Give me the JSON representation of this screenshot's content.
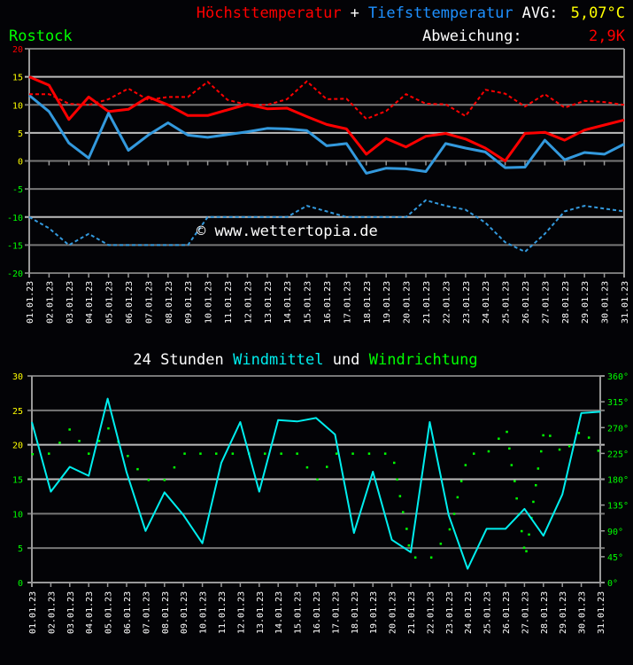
{
  "header": {
    "title_max": "Höchsttemperatur",
    "title_plus": "+",
    "title_min": "Tiefsttemperatur",
    "avg_label": "AVG:",
    "avg_value": "5,07°C",
    "location": "Rostock",
    "deviation_label": "Abweichung:",
    "deviation_value": "2,9K"
  },
  "watermark": "© www.wettertopia.de",
  "colors": {
    "background": "#030306",
    "max_temp": "#ff0000",
    "min_temp": "#3399dd",
    "wind_speed": "#00eeee",
    "wind_direction": "#00ff00",
    "avg": "#ffff00",
    "grid": "#9a9a9a"
  },
  "chart_data": [
    {
      "type": "line",
      "title": "Höchsttemperatur + Tiefsttemperatur",
      "categories": [
        "01.01.23",
        "02.01.23",
        "03.01.23",
        "04.01.23",
        "05.01.23",
        "06.01.23",
        "07.01.23",
        "08.01.23",
        "09.01.23",
        "10.01.23",
        "11.01.23",
        "12.01.23",
        "13.01.23",
        "14.01.23",
        "15.01.23",
        "16.01.23",
        "17.01.23",
        "18.01.23",
        "19.01.23",
        "20.01.23",
        "21.01.23",
        "22.01.23",
        "23.01.23",
        "24.01.23",
        "25.01.23",
        "26.01.23",
        "27.01.23",
        "28.01.23",
        "29.01.23",
        "30.01.23",
        "31.01.23"
      ],
      "ylim": [
        -20,
        20
      ],
      "yticks": [
        "20",
        "15",
        "10",
        "5",
        "0",
        "-5",
        "-10",
        "-15",
        "-20"
      ],
      "grid": true,
      "series": [
        {
          "style": "solid",
          "color": "#ff0000",
          "values": [
            15,
            13.5,
            7.4,
            11.4,
            8.8,
            9.2,
            11.4,
            10,
            8.1,
            8.1,
            9.1,
            10.1,
            9.3,
            9.4,
            7.9,
            6.5,
            5.7,
            1.2,
            4.0,
            2.5,
            4.4,
            4.9,
            3.9,
            2.3,
            0.0,
            4.9,
            5.1,
            3.7,
            5.5,
            6.4,
            7.3
          ]
        },
        {
          "style": "solid",
          "color": "#3399dd",
          "values": [
            11.7,
            8.8,
            3.2,
            0.5,
            8.5,
            1.9,
            4.6,
            6.8,
            4.6,
            4.2,
            4.7,
            5.2,
            5.8,
            5.7,
            5.4,
            2.7,
            3.1,
            -2.2,
            -1.3,
            -1.4,
            -1.9,
            3.1,
            2.3,
            1.6,
            -1.2,
            -1.1,
            3.7,
            0.2,
            1.5,
            1.2,
            3.0
          ]
        },
        {
          "style": "dashed",
          "color": "#ff0000",
          "values": [
            11.9,
            11.9,
            10.2,
            10.0,
            11.0,
            12.9,
            10.9,
            11.4,
            11.4,
            14.1,
            10.9,
            10.0,
            10.0,
            11.0,
            14.2,
            11.0,
            11.1,
            7.5,
            8.9,
            11.9,
            10.2,
            10.1,
            8.0,
            12.7,
            12.0,
            9.7,
            11.9,
            9.5,
            10.7,
            10.5,
            10.0
          ]
        },
        {
          "style": "dashed",
          "color": "#3399dd",
          "values": [
            -10,
            -12,
            -15,
            -13,
            -15,
            -15,
            -15,
            -15,
            -15,
            -10,
            -10,
            -10,
            -10,
            -10,
            -8,
            -9,
            -10,
            -10,
            -10,
            -10,
            -7,
            -8,
            -8.7,
            -11,
            -14.5,
            -16.2,
            -13,
            -9,
            -8,
            -8.5,
            -9
          ]
        }
      ]
    },
    {
      "type": "line",
      "title_parts": [
        "24 Stunden",
        "Windmittel",
        "und",
        "Windrichtung"
      ],
      "categories": [
        "01.01.23",
        "02.01.23",
        "03.01.23",
        "04.01.23",
        "05.01.23",
        "06.01.23",
        "07.01.23",
        "08.01.23",
        "09.01.23",
        "10.01.23",
        "11.01.23",
        "12.01.23",
        "13.01.23",
        "14.01.23",
        "15.01.23",
        "16.01.23",
        "17.01.23",
        "18.01.23",
        "19.01.23",
        "20.01.23",
        "21.01.23",
        "22.01.23",
        "23.01.23",
        "24.01.23",
        "25.01.23",
        "26.01.23",
        "27.01.23",
        "28.01.23",
        "29.01.23",
        "30.01.23",
        "31.01.23"
      ],
      "ylim": [
        0,
        30
      ],
      "yticks": [
        "30",
        "25",
        "20",
        "15",
        "10",
        "5",
        "0"
      ],
      "y2lim": [
        0,
        360
      ],
      "y2ticks": [
        "360°",
        "315°",
        "270°",
        "225°",
        "180°",
        "135°",
        "90°",
        "45°",
        "0°"
      ],
      "grid": true,
      "wind_speed": [
        23.3,
        13.2,
        16.8,
        15.5,
        26.7,
        16.0,
        7.5,
        13.1,
        9.8,
        5.7,
        17.4,
        23.3,
        13.2,
        23.6,
        23.4,
        23.9,
        21.5,
        7.2,
        16.1,
        6.2,
        4.4,
        23.3,
        9.8,
        2.0,
        7.8,
        7.8,
        10.7,
        6.8,
        12.8,
        24.6,
        24.8
      ],
      "wind_direction_points": [
        [
          1.03,
          224
        ],
        [
          1.89,
          225
        ],
        [
          2.46,
          244
        ],
        [
          2.98,
          267
        ],
        [
          3.49,
          247
        ],
        [
          3.99,
          225
        ],
        [
          4.54,
          247
        ],
        [
          5.03,
          269
        ],
        [
          5.55,
          246
        ],
        [
          6.05,
          221
        ],
        [
          6.57,
          198
        ],
        [
          7.15,
          179
        ],
        [
          7.99,
          179
        ],
        [
          8.51,
          201
        ],
        [
          9.05,
          225
        ],
        [
          9.89,
          225
        ],
        [
          10.72,
          225
        ],
        [
          11.59,
          225
        ],
        [
          12.45,
          225
        ],
        [
          13.29,
          225
        ],
        [
          14.15,
          225
        ],
        [
          14.99,
          225
        ],
        [
          15.52,
          201
        ],
        [
          16.06,
          180
        ],
        [
          16.56,
          202
        ],
        [
          17.07,
          225
        ],
        [
          17.93,
          225
        ],
        [
          18.79,
          225
        ],
        [
          19.64,
          225
        ],
        [
          20.11,
          209
        ],
        [
          20.27,
          180
        ],
        [
          20.42,
          151
        ],
        [
          20.58,
          123
        ],
        [
          20.77,
          94
        ],
        [
          20.89,
          65
        ],
        [
          21.23,
          44
        ],
        [
          22.07,
          44
        ],
        [
          22.57,
          68
        ],
        [
          23.04,
          93
        ],
        [
          23.28,
          120
        ],
        [
          23.46,
          149
        ],
        [
          23.66,
          177
        ],
        [
          23.88,
          205
        ],
        [
          24.32,
          225
        ],
        [
          25.1,
          229
        ],
        [
          25.63,
          251
        ],
        [
          26.06,
          263
        ],
        [
          26.19,
          234
        ],
        [
          26.31,
          205
        ],
        [
          26.47,
          177
        ],
        [
          26.58,
          147
        ],
        [
          26.7,
          119
        ],
        [
          26.84,
          90
        ],
        [
          26.97,
          61
        ],
        [
          27.09,
          55
        ],
        [
          27.23,
          84
        ],
        [
          27.36,
          113
        ],
        [
          27.46,
          141
        ],
        [
          27.59,
          170
        ],
        [
          27.71,
          199
        ],
        [
          27.87,
          229
        ],
        [
          27.98,
          257
        ],
        [
          28.34,
          256
        ],
        [
          28.84,
          232
        ],
        [
          29.36,
          238
        ],
        [
          29.86,
          261
        ],
        [
          30.39,
          253
        ],
        [
          30.89,
          230
        ]
      ]
    }
  ]
}
